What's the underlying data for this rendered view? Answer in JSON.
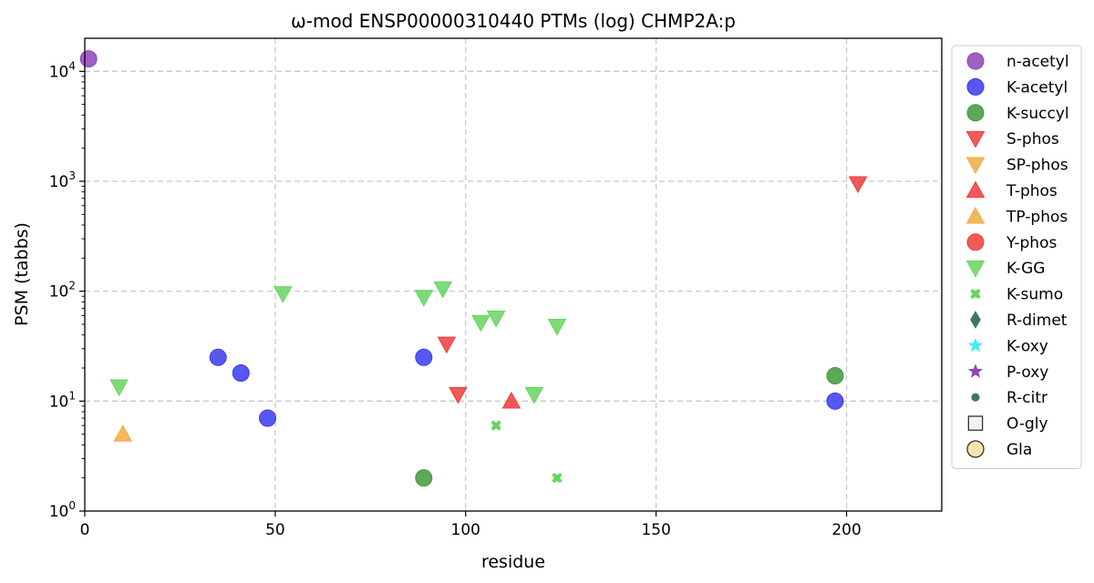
{
  "chart_data": {
    "type": "scatter",
    "title": "ω-mod ENSP00000310440 PTMs (log) CHMP2A:p",
    "xlabel": "residue",
    "ylabel": "PSM (tabbs)",
    "xlim": [
      0,
      225
    ],
    "ylim": [
      1,
      20000
    ],
    "y_scale": "log",
    "grid": true,
    "legend_position": "outside right",
    "x_ticks": [
      {
        "value": 0,
        "label": "0"
      },
      {
        "value": 50,
        "label": "50"
      },
      {
        "value": 100,
        "label": "100"
      },
      {
        "value": 150,
        "label": "150"
      },
      {
        "value": 200,
        "label": "200"
      }
    ],
    "y_ticks": [
      {
        "value": 1,
        "base": "10",
        "exp": "0"
      },
      {
        "value": 10,
        "base": "10",
        "exp": "1"
      },
      {
        "value": 100,
        "base": "10",
        "exp": "2"
      },
      {
        "value": 1000,
        "base": "10",
        "exp": "3"
      },
      {
        "value": 10000,
        "base": "10",
        "exp": "4"
      }
    ],
    "series": [
      {
        "name": "n-acetyl",
        "marker": "circle",
        "color": "#8e44b8",
        "points": [
          [
            1,
            13000
          ]
        ]
      },
      {
        "name": "K-acetyl",
        "marker": "circle",
        "color": "#3a3af0",
        "points": [
          [
            35,
            25
          ],
          [
            41,
            18
          ],
          [
            48,
            7
          ],
          [
            89,
            25
          ],
          [
            197,
            10
          ]
        ]
      },
      {
        "name": "K-succyl",
        "marker": "circle",
        "color": "#3f9a3a",
        "points": [
          [
            89,
            2
          ],
          [
            197,
            17
          ]
        ]
      },
      {
        "name": "S-phos",
        "marker": "triangle-down",
        "color": "#f03c3c",
        "points": [
          [
            95,
            33
          ],
          [
            98,
            11.5
          ],
          [
            203,
            950
          ]
        ]
      },
      {
        "name": "SP-phos",
        "marker": "triangle-down",
        "color": "#f0ab40",
        "points": []
      },
      {
        "name": "T-phos",
        "marker": "triangle-up",
        "color": "#f03c3c",
        "points": [
          [
            112,
            10
          ]
        ]
      },
      {
        "name": "TP-phos",
        "marker": "triangle-up",
        "color": "#f0ab40",
        "points": [
          [
            10,
            5
          ]
        ]
      },
      {
        "name": "Y-phos",
        "marker": "circle",
        "color": "#f03c3c",
        "points": []
      },
      {
        "name": "K-GG",
        "marker": "triangle-down",
        "color": "#66d65f",
        "points": [
          [
            9,
            13.5
          ],
          [
            52,
            95
          ],
          [
            89,
            88
          ],
          [
            94,
            105
          ],
          [
            104,
            52
          ],
          [
            108,
            57
          ],
          [
            118,
            11.5
          ],
          [
            124,
            48
          ]
        ]
      },
      {
        "name": "K-sumo",
        "marker": "x",
        "color": "#66d65f",
        "points": [
          [
            108,
            6
          ],
          [
            124,
            2
          ]
        ]
      },
      {
        "name": "R-dimet",
        "marker": "diamond",
        "color": "#3d7a5c",
        "points": []
      },
      {
        "name": "K-oxy",
        "marker": "star",
        "color": "#3ff0f0",
        "points": []
      },
      {
        "name": "P-oxy",
        "marker": "star",
        "color": "#8e44b8",
        "points": []
      },
      {
        "name": "R-citr",
        "marker": "small-circle",
        "color": "#3d7a5c",
        "points": []
      },
      {
        "name": "O-gly",
        "marker": "square",
        "color": "#f2f2f2",
        "points": []
      },
      {
        "name": "Gla",
        "marker": "circle",
        "color": "#f5e2a0",
        "points": []
      }
    ]
  }
}
